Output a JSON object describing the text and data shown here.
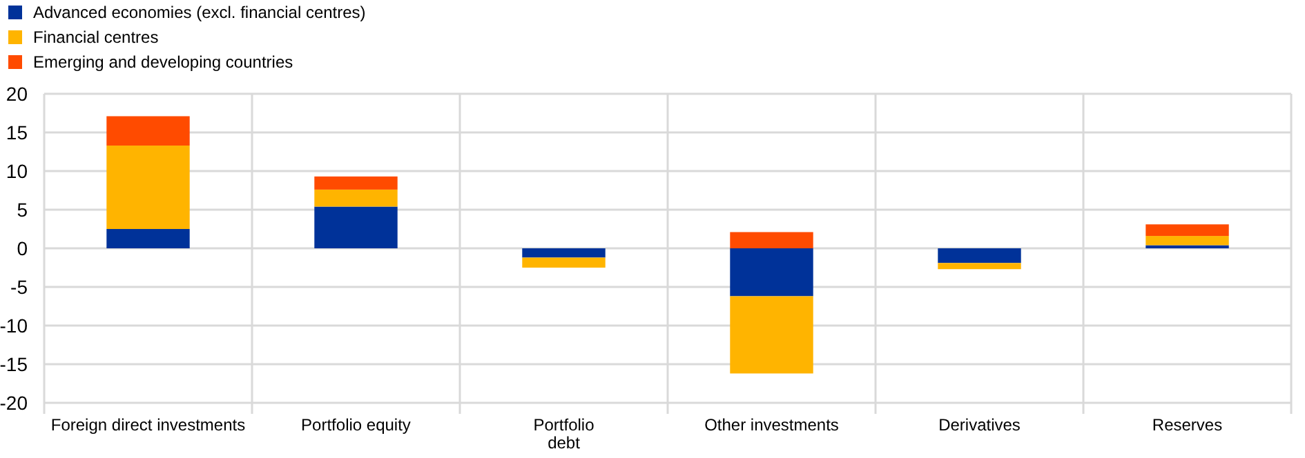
{
  "chart_data": {
    "type": "bar",
    "stacked": true,
    "categories": [
      "Foreign direct investments",
      "Portfolio equity",
      "Portfolio\ndebt",
      "Other investments",
      "Derivatives",
      "Reserves"
    ],
    "series": [
      {
        "name": "Advanced economies (excl. financial centres)",
        "color": "#003299",
        "values": [
          2.5,
          5.4,
          -1.2,
          -6.2,
          -1.9,
          0.4
        ]
      },
      {
        "name": "Financial centres",
        "color": "#ffb400",
        "values": [
          10.8,
          2.2,
          -1.3,
          -10.0,
          -0.8,
          1.2
        ]
      },
      {
        "name": "Emerging and developing countries",
        "color": "#ff4b00",
        "values": [
          3.8,
          1.7,
          null,
          2.1,
          null,
          1.5
        ]
      }
    ],
    "ylim": [
      -20,
      20
    ],
    "yticks": [
      -20,
      -15,
      -10,
      -5,
      0,
      5,
      10,
      15,
      20
    ],
    "grid": true,
    "legend": "top left"
  }
}
